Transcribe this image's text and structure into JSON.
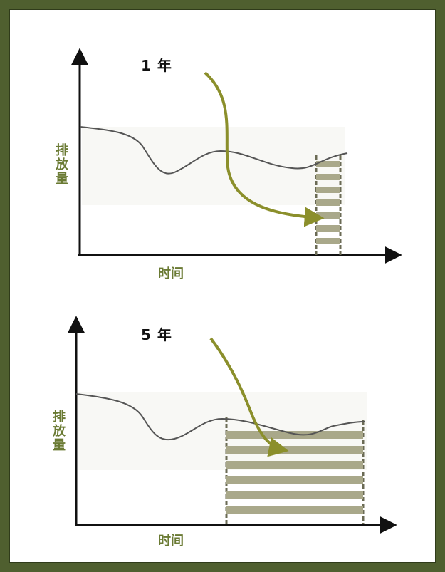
{
  "panels": [
    {
      "title": "1 年",
      "ylabel": [
        "排",
        "放",
        "量"
      ],
      "xlabel": "时间"
    },
    {
      "title": "5 年",
      "ylabel": [
        "排",
        "放",
        "量"
      ],
      "xlabel": "时间"
    }
  ],
  "colors": {
    "frame": "#4f5f2f",
    "label_green": "#6a7a33",
    "arrow_olive": "#8b8f2b",
    "bar_fill": "#a9a88a",
    "bar_stroke": "#6b6b55"
  }
}
